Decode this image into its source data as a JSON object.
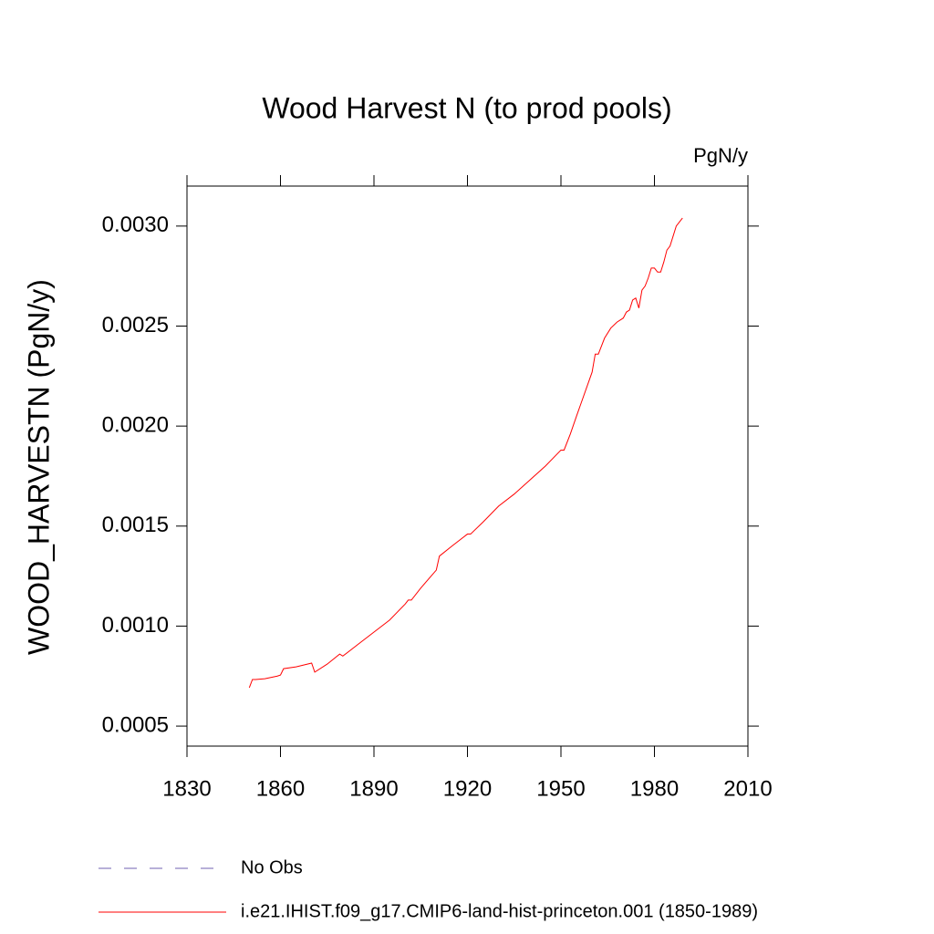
{
  "chart_data": {
    "type": "line",
    "title": "Wood Harvest N (to prod pools)",
    "units": "PgN/y",
    "y_label": "WOOD_HARVESTN  (PgN/y)",
    "xlim": [
      1830,
      2010
    ],
    "xticks": [
      1830,
      1860,
      1890,
      1920,
      1950,
      1980,
      2010
    ],
    "ylim": [
      0.0004,
      0.0032
    ],
    "yticks": [
      0.0005,
      {
        "value": 0.001,
        "label": "0.0010"
      },
      {
        "value": 0.0015,
        "label": "0.0015"
      },
      {
        "value": 0.002,
        "label": "0.0020"
      },
      {
        "value": 0.0025,
        "label": "0.0025"
      },
      {
        "value": 0.003,
        "label": "0.0030"
      }
    ],
    "legend_items": [
      {
        "label": "No Obs",
        "color": "#7060b0",
        "dashed": true
      }
    ],
    "x": [
      1850,
      1851,
      1852,
      1855,
      1859,
      1860,
      1861,
      1865,
      1870,
      1871,
      1875,
      1879,
      1880,
      1885,
      1890,
      1895,
      1900,
      1901,
      1902,
      1905,
      1910,
      1911,
      1915,
      1920,
      1921,
      1925,
      1930,
      1935,
      1940,
      1945,
      1950,
      1951,
      1953,
      1955,
      1960,
      1961,
      1962,
      1963,
      1964,
      1966,
      1968,
      1970,
      1971,
      1972,
      1973,
      1974,
      1975,
      1976,
      1977,
      1978,
      1979,
      1980,
      1981,
      1982,
      1983,
      1984,
      1985,
      1986,
      1987,
      1989
    ],
    "series": [
      {
        "name": "i.e21.IHIST.f09_g17.CMIP6-land-hist-princeton.001 (1850-1989)",
        "color": "#ff0000",
        "values": [
          0.000692,
          0.000733,
          0.000733,
          0.000737,
          0.00075,
          0.000755,
          0.000787,
          0.000796,
          0.000815,
          0.00077,
          0.00081,
          0.00086,
          0.00085,
          0.00091,
          0.00097,
          0.00103,
          0.00111,
          0.00113,
          0.00113,
          0.00119,
          0.00128,
          0.00135,
          0.0014,
          0.00146,
          0.00146,
          0.00152,
          0.0016,
          0.00166,
          0.00173,
          0.0018,
          0.00188,
          0.00188,
          0.00196,
          0.00205,
          0.00227,
          0.00236,
          0.00236,
          0.0024,
          0.00244,
          0.00249,
          0.00252,
          0.00254,
          0.00257,
          0.00258,
          0.00263,
          0.00264,
          0.00259,
          0.00268,
          0.0027,
          0.00274,
          0.00279,
          0.00279,
          0.00277,
          0.00277,
          0.00282,
          0.00288,
          0.0029,
          0.00295,
          0.003,
          0.00304
        ]
      }
    ]
  }
}
